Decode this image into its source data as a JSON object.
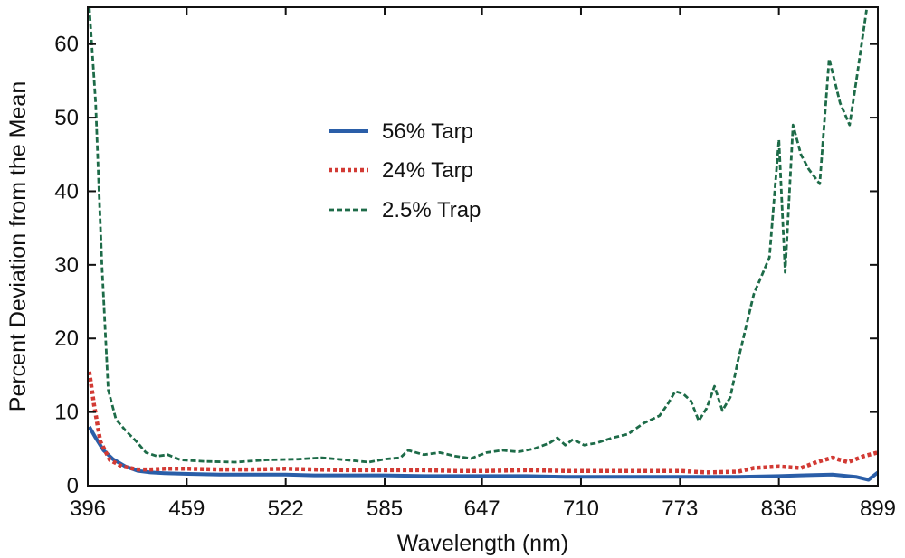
{
  "chart_data": {
    "type": "line",
    "title": "",
    "xlabel": "Wavelength (nm)",
    "ylabel": "Percent Deviation from the Mean",
    "xlim": [
      396,
      899
    ],
    "ylim": [
      0,
      65
    ],
    "x_ticks": [
      396,
      459,
      522,
      585,
      647,
      710,
      773,
      836,
      899
    ],
    "y_ticks": [
      0,
      10,
      20,
      30,
      40,
      50,
      60
    ],
    "grid": false,
    "legend_position": "upper-center",
    "series": [
      {
        "name": "56% Tarp",
        "color": "#2a5ea8",
        "style": "solid",
        "x": [
          397,
          401,
          406,
          412,
          420,
          428,
          436,
          445,
          460,
          480,
          500,
          522,
          540,
          560,
          585,
          610,
          630,
          650,
          675,
          700,
          710,
          730,
          750,
          773,
          790,
          810,
          836,
          850,
          870,
          885,
          893,
          899
        ],
        "y": [
          8.0,
          6.5,
          4.8,
          3.6,
          2.6,
          2.0,
          1.8,
          1.7,
          1.6,
          1.5,
          1.5,
          1.5,
          1.4,
          1.4,
          1.4,
          1.3,
          1.3,
          1.3,
          1.3,
          1.2,
          1.2,
          1.2,
          1.2,
          1.2,
          1.2,
          1.2,
          1.3,
          1.4,
          1.5,
          1.2,
          0.8,
          1.8
        ]
      },
      {
        "name": "24% Tarp",
        "color": "#d23a34",
        "style": "dotted",
        "x": [
          397,
          400,
          404,
          410,
          418,
          428,
          436,
          445,
          460,
          480,
          500,
          522,
          540,
          560,
          585,
          610,
          630,
          650,
          675,
          700,
          710,
          730,
          750,
          773,
          790,
          810,
          820,
          836,
          850,
          860,
          870,
          880,
          890,
          899
        ],
        "y": [
          15.5,
          11.0,
          6.0,
          3.5,
          2.6,
          2.2,
          2.2,
          2.3,
          2.3,
          2.2,
          2.2,
          2.3,
          2.2,
          2.1,
          2.1,
          2.1,
          2.0,
          2.0,
          2.1,
          2.0,
          2.0,
          2.0,
          2.0,
          2.0,
          1.8,
          1.9,
          2.4,
          2.6,
          2.4,
          3.2,
          3.8,
          3.2,
          4.0,
          4.5
        ]
      },
      {
        "name": "2.5% Trap",
        "color": "#1d6b48",
        "style": "dashed",
        "x": [
          397,
          401,
          405,
          409,
          414,
          420,
          427,
          433,
          440,
          447,
          455,
          470,
          490,
          510,
          530,
          545,
          560,
          575,
          585,
          595,
          600,
          610,
          620,
          630,
          640,
          650,
          660,
          670,
          680,
          690,
          695,
          700,
          705,
          712,
          720,
          730,
          740,
          750,
          760,
          765,
          770,
          775,
          780,
          785,
          790,
          795,
          800,
          805,
          810,
          820,
          830,
          836,
          840,
          845,
          850,
          855,
          862,
          868,
          875,
          881,
          886,
          892
        ],
        "y": [
          65,
          52,
          30,
          13,
          9.0,
          7.5,
          6.0,
          4.5,
          4.0,
          4.2,
          3.5,
          3.3,
          3.2,
          3.5,
          3.6,
          3.8,
          3.5,
          3.2,
          3.6,
          3.8,
          4.8,
          4.2,
          4.5,
          4.0,
          3.7,
          4.5,
          4.8,
          4.6,
          5.0,
          5.8,
          6.5,
          5.5,
          6.3,
          5.5,
          5.8,
          6.5,
          7.0,
          8.5,
          9.5,
          11.0,
          12.8,
          12.5,
          11.5,
          8.8,
          10.5,
          13.5,
          10.2,
          12.0,
          17.0,
          26.0,
          31.0,
          47.0,
          29.0,
          49.0,
          45.0,
          43.0,
          41.0,
          58.0,
          52.0,
          49.0,
          56.0,
          65.0
        ]
      }
    ]
  }
}
